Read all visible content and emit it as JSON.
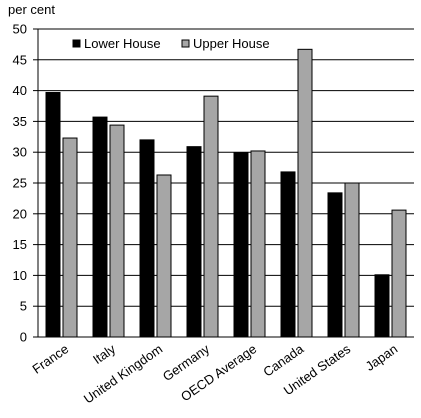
{
  "chart_data": {
    "type": "bar",
    "ylabel": "per cent",
    "ylim": [
      0,
      50
    ],
    "yticks": [
      0,
      5,
      10,
      15,
      20,
      25,
      30,
      35,
      40,
      45,
      50
    ],
    "grid": "horizontal",
    "legend_position": "top-left",
    "categories": [
      "France",
      "Italy",
      "United Kingdom",
      "Germany",
      "OECD Average",
      "Canada",
      "United States",
      "Japan"
    ],
    "series": [
      {
        "name": "Lower House",
        "color": "#000000",
        "values": [
          39.7,
          35.7,
          32.0,
          30.9,
          29.9,
          26.8,
          23.4,
          10.1
        ]
      },
      {
        "name": "Upper House",
        "color": "#a6a6a6",
        "values": [
          32.3,
          34.4,
          26.3,
          39.1,
          30.2,
          46.7,
          25.0,
          20.6
        ]
      }
    ]
  }
}
